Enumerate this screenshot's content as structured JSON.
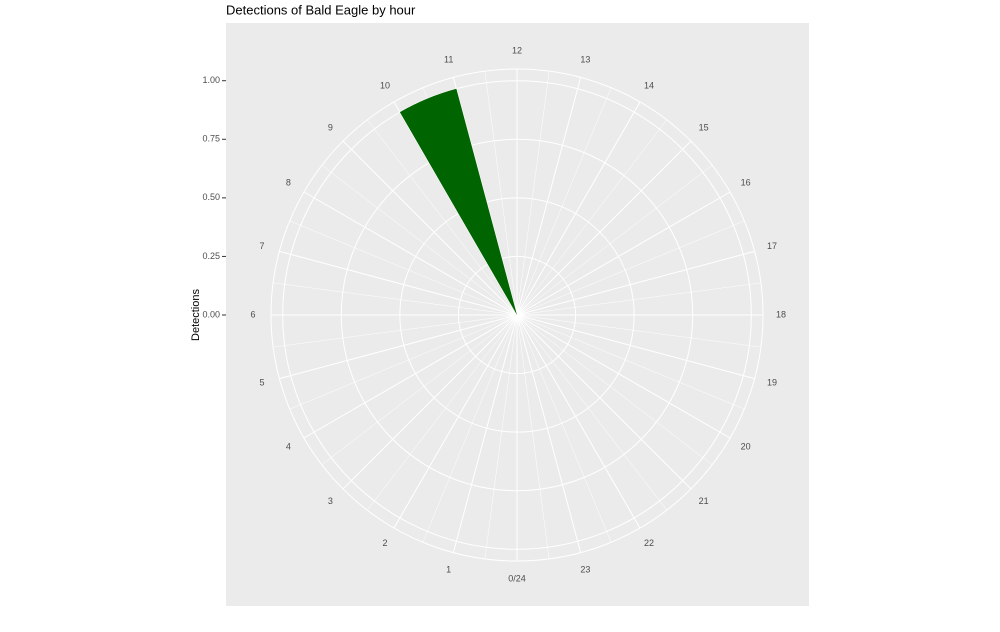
{
  "chart_data": {
    "type": "polar-bar",
    "title": "Detections of Bald Eagle by hour",
    "y_label": "Detections",
    "x": [
      10
    ],
    "values": [
      1.0
    ],
    "color": "#006400",
    "xlim": [
      0,
      24
    ],
    "xticks": [
      {
        "value": 0,
        "label": "0/24"
      },
      1,
      2,
      3,
      4,
      5,
      6,
      7,
      8,
      9,
      10,
      11,
      12,
      13,
      14,
      15,
      16,
      17,
      18,
      19,
      20,
      21,
      22,
      23
    ],
    "ylim": [
      0,
      1.05
    ],
    "yticks": [
      {
        "value": 0,
        "label": "0.00"
      },
      {
        "value": 0.25,
        "label": "0.25"
      },
      {
        "value": 0.5,
        "label": "0.50"
      },
      {
        "value": 0.75,
        "label": "0.75"
      },
      {
        "value": 1.0,
        "label": "1.00"
      }
    ],
    "grid": true
  }
}
